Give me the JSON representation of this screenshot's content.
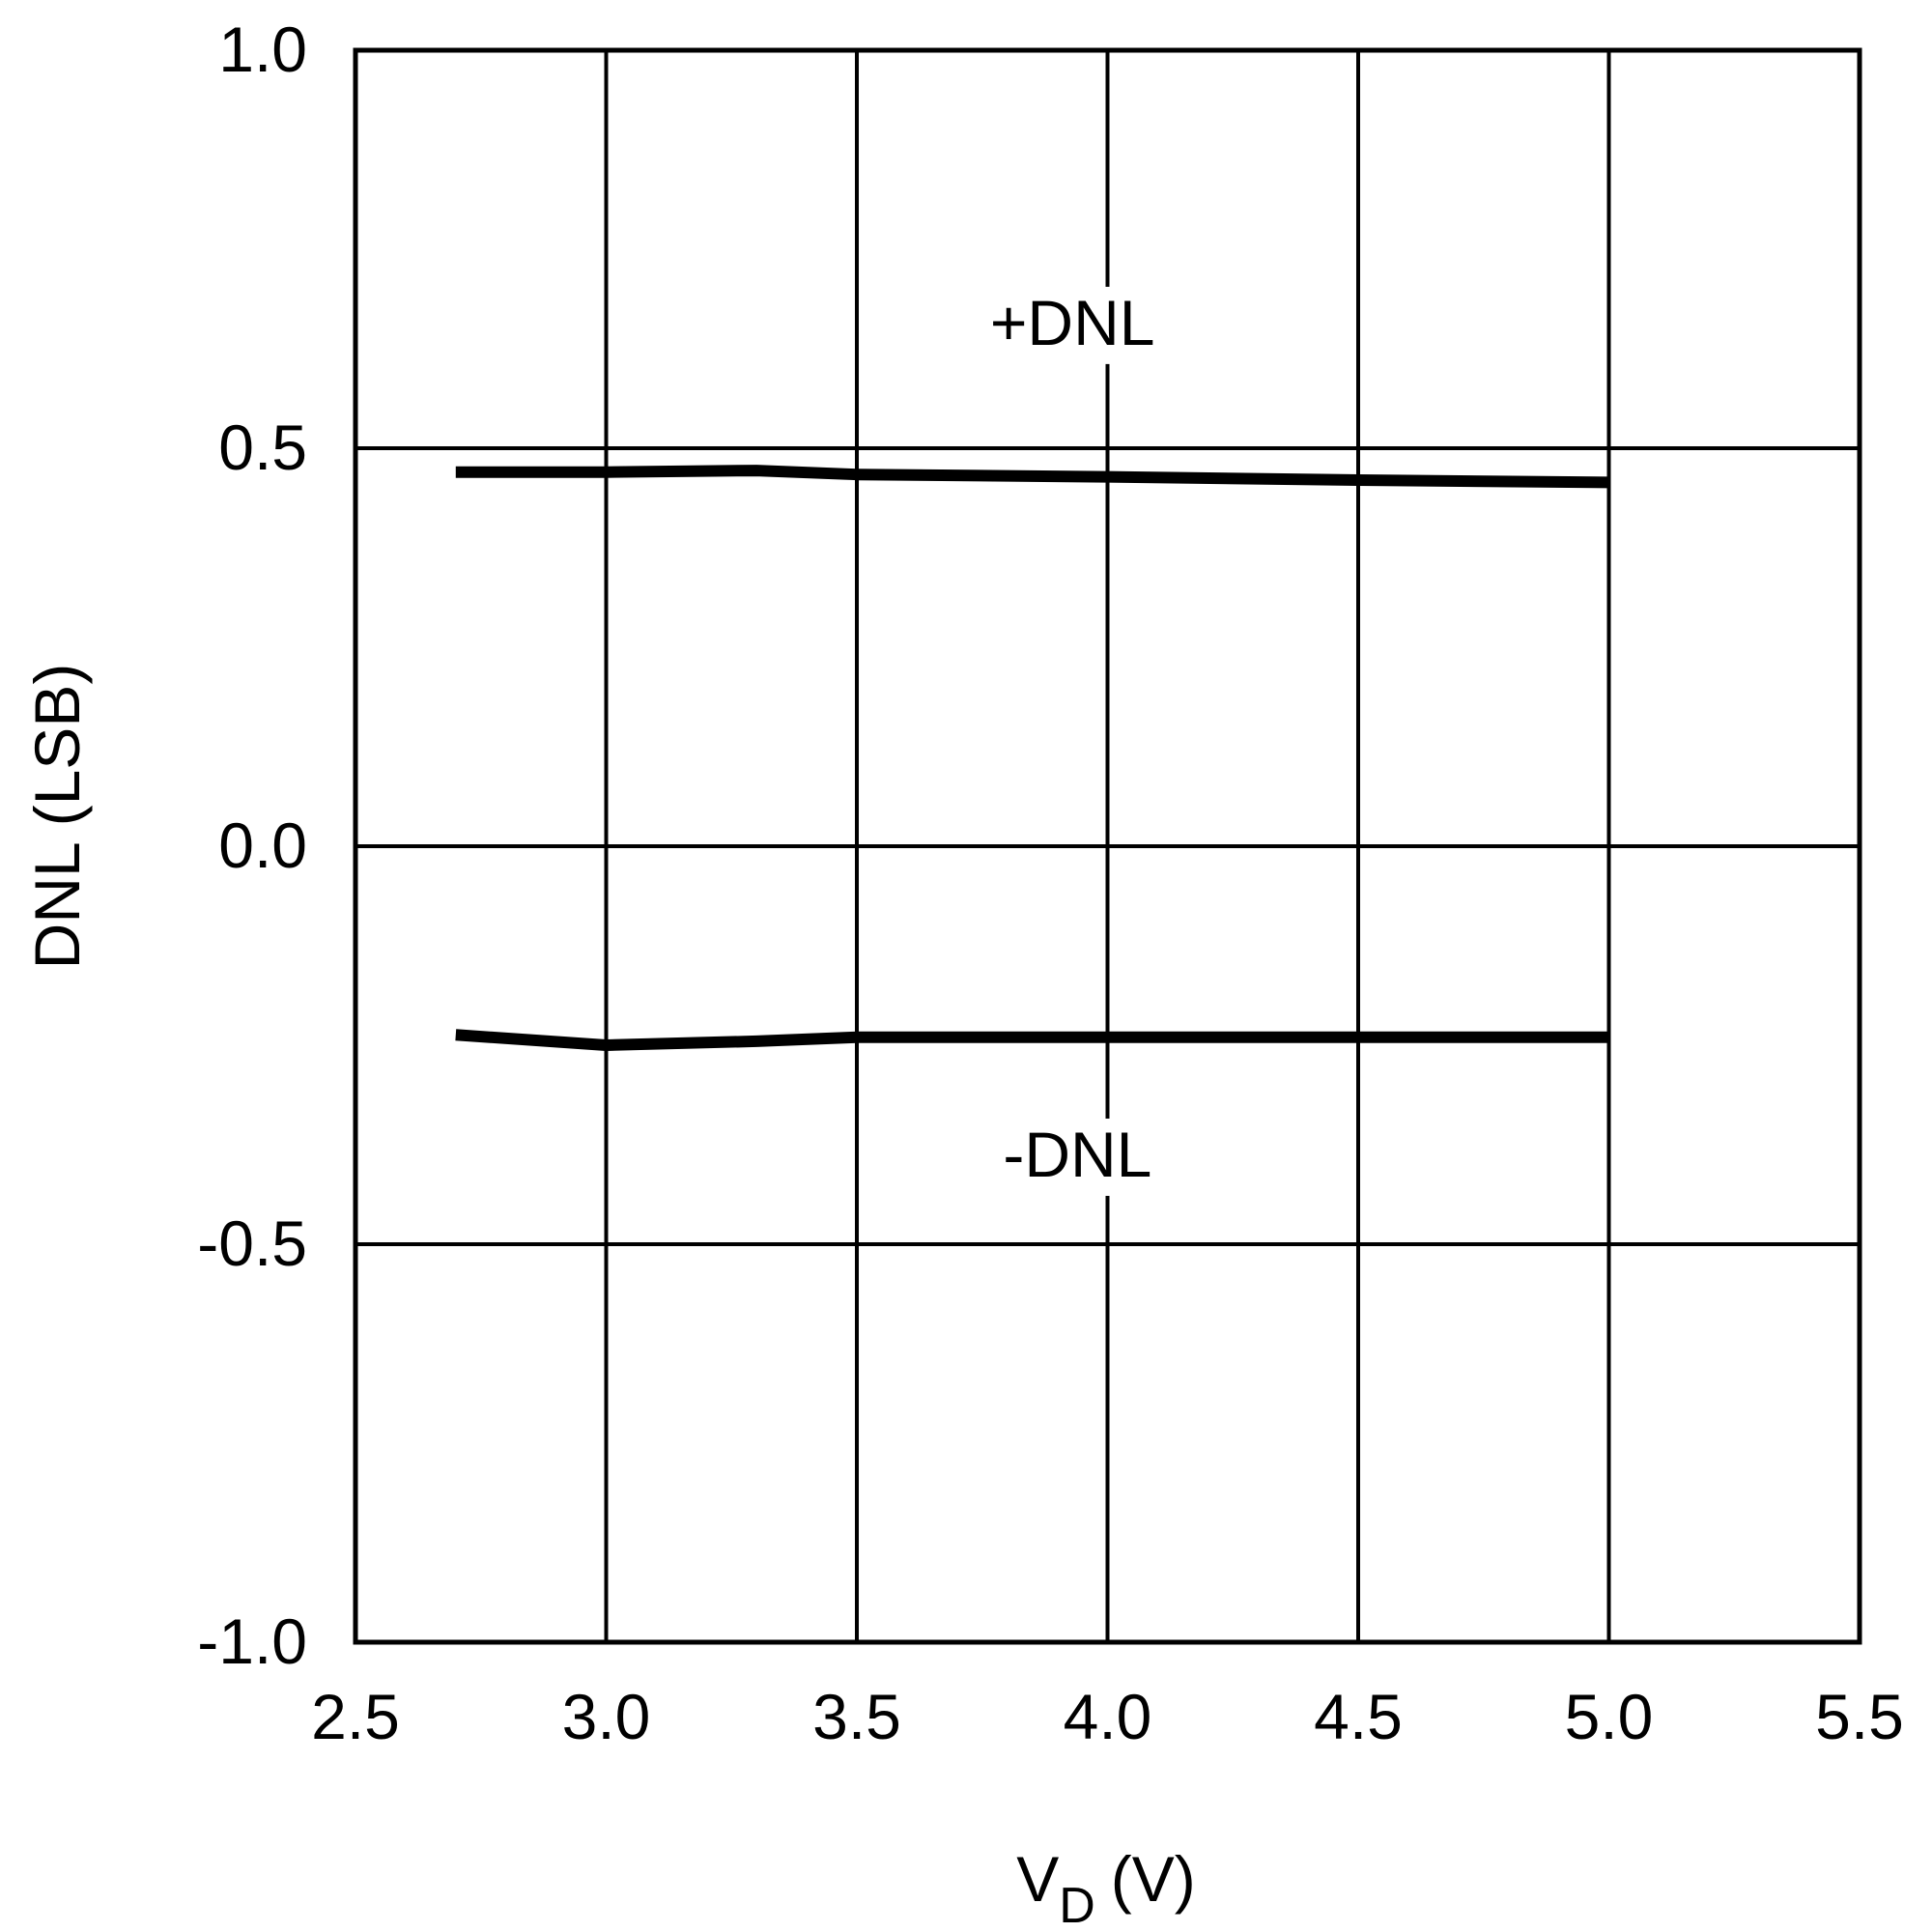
{
  "chart_data": {
    "type": "line",
    "title": "",
    "xlabel": "V",
    "xlabel_sub": "D",
    "xlabel_unit": "(V)",
    "ylabel": "DNL (LSB)",
    "xlim": [
      2.5,
      5.5
    ],
    "ylim": [
      -1.0,
      1.0
    ],
    "xticks": [
      "2.5",
      "3.0",
      "3.5",
      "4.0",
      "4.5",
      "5.0",
      "5.5"
    ],
    "yticks": [
      "1.0",
      "0.5",
      "0.0",
      "-0.5",
      "-1.0"
    ],
    "grid": true,
    "series": [
      {
        "name": "+DNL",
        "x": [
          2.7,
          3.0,
          3.3,
          3.5,
          4.0,
          4.5,
          5.0
        ],
        "y": [
          0.47,
          0.47,
          0.472,
          0.467,
          0.464,
          0.46,
          0.457
        ]
      },
      {
        "name": "-DNL",
        "x": [
          2.7,
          3.0,
          3.3,
          3.5,
          4.0,
          4.5,
          5.0
        ],
        "y": [
          -0.237,
          -0.25,
          -0.245,
          -0.24,
          -0.24,
          -0.24,
          -0.24
        ]
      }
    ],
    "annotations": [
      "+DNL",
      "-DNL"
    ]
  }
}
